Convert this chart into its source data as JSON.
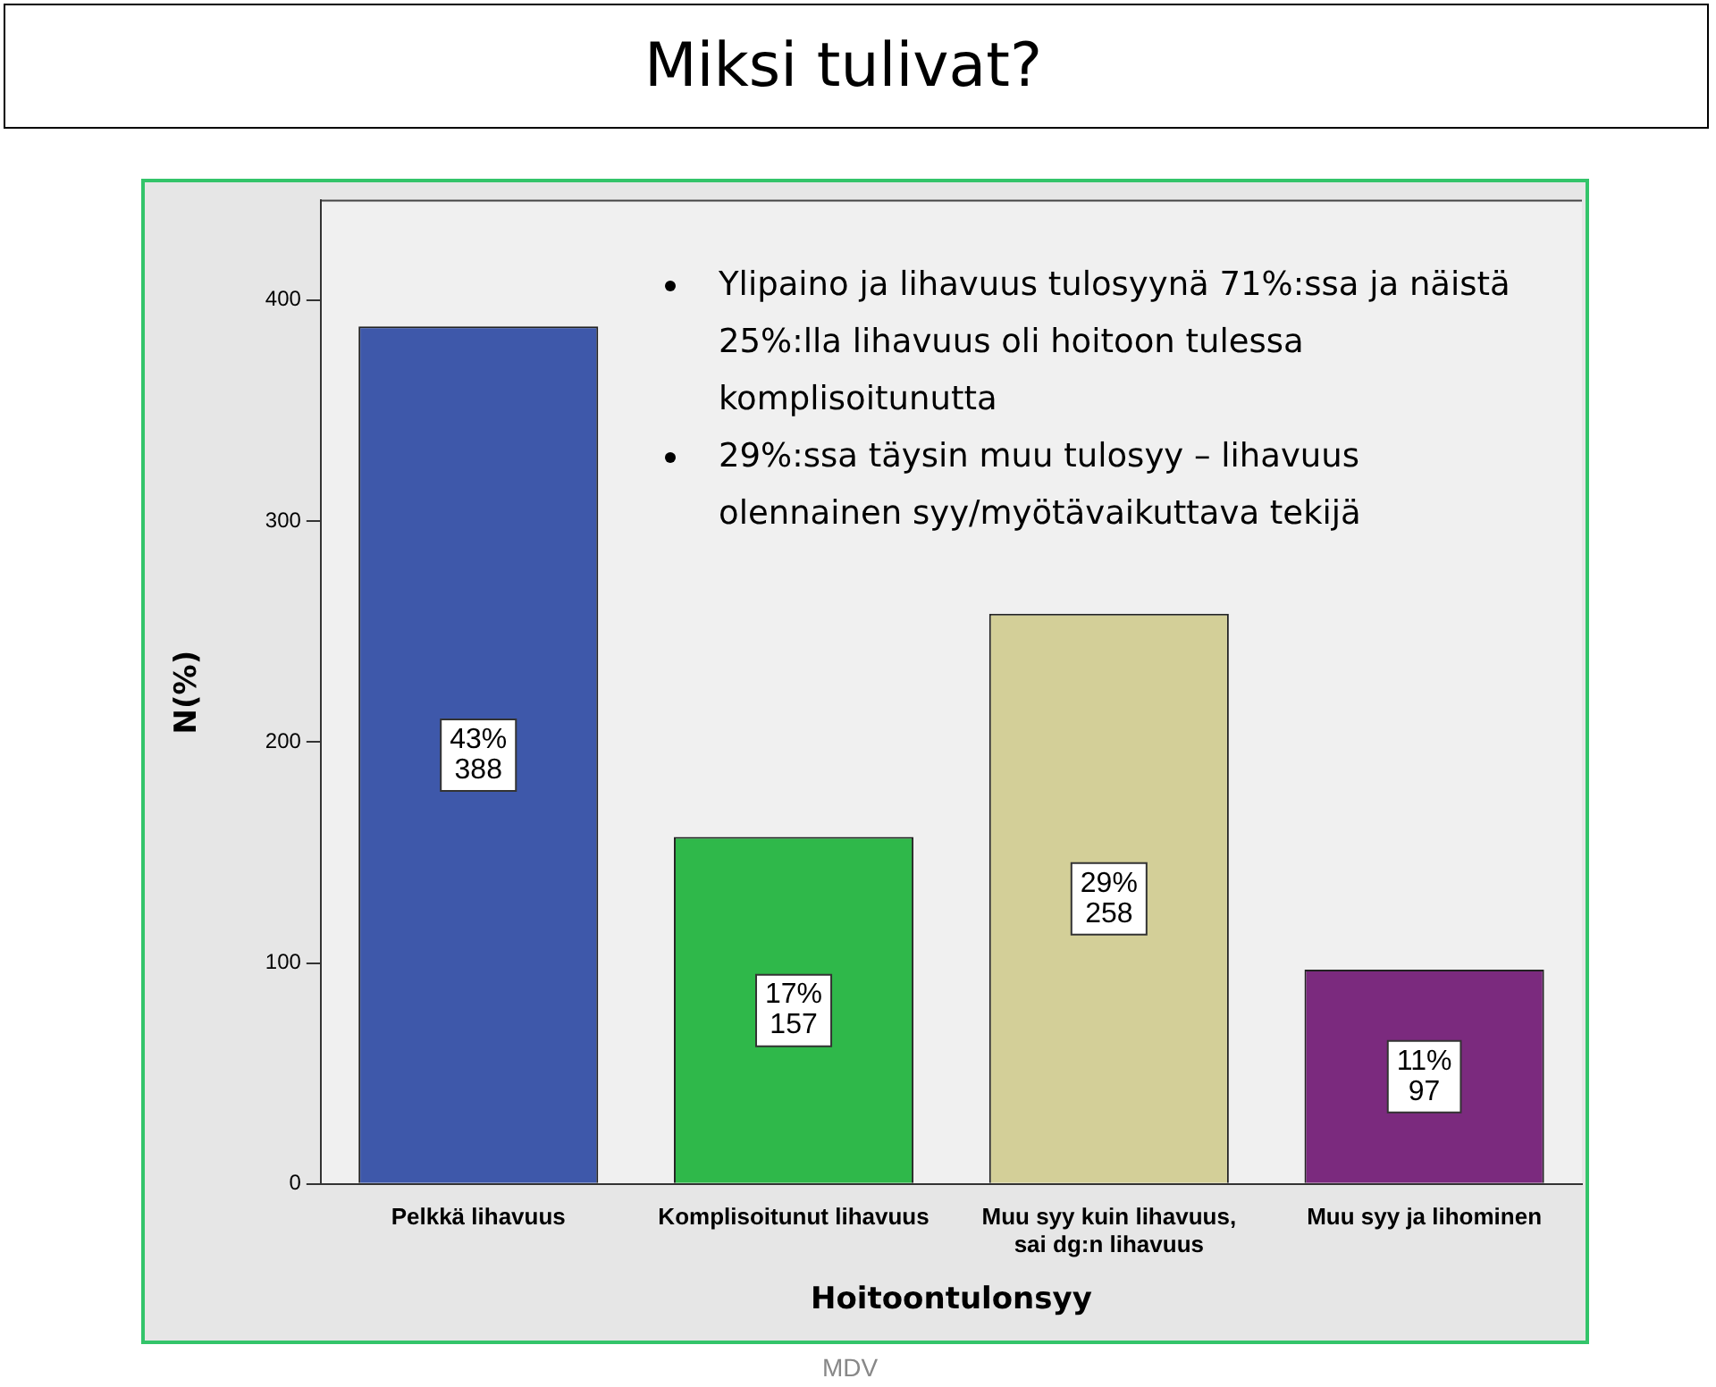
{
  "chart_data": {
    "type": "bar",
    "title": "Miksi tulivat?",
    "categories": [
      "Pelkkä lihavuus",
      "Komplisoitunut lihavuus",
      "Muu syy kuin lihavuus, sai dg:n lihavuus",
      "Muu syy ja lihominen"
    ],
    "values": [
      388,
      157,
      258,
      97
    ],
    "colors": [
      "#3e58aa",
      "#2fb84a",
      "#d3cf98",
      "#7b2a7e"
    ],
    "value_labels": [
      "43%\n388",
      "17%\n157",
      "29%\n258",
      "11%\n97"
    ],
    "ylim": [
      0,
      445
    ],
    "yticks": [
      0,
      100,
      200,
      300,
      400
    ],
    "grid": false,
    "legend": false,
    "xlabel": "Hoitoontulonsyy",
    "ylabel": "N(%)",
    "annotations": [
      "Ylipaino ja lihavuus tulosyynä 71%:ssa ja näistä 25%:lla lihavuus oli hoitoon tulessa komplisoitunutta",
      "29%:ssa täysin muu tulosyy – lihavuus olennainen syy/myötävaikuttava tekijä",
      "MDV"
    ]
  }
}
